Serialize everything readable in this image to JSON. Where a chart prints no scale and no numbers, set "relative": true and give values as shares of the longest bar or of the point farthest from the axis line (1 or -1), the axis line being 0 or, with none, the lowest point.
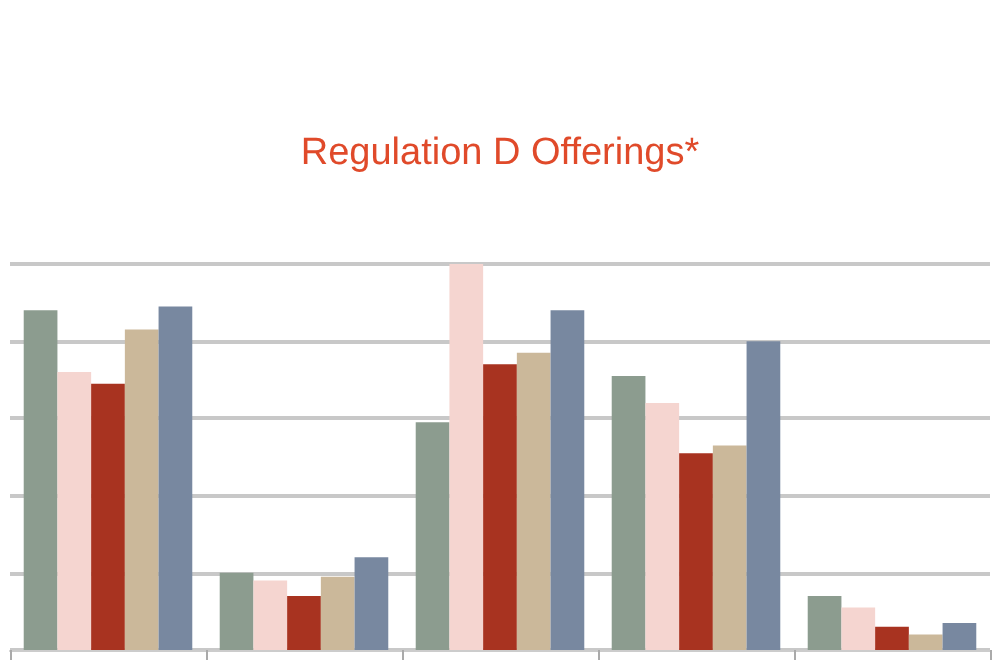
{
  "chart_data": {
    "type": "bar",
    "title": "Regulation D Offerings*",
    "relative": true,
    "grid": "y",
    "categories": [
      null,
      null,
      null,
      null,
      null
    ],
    "series": [
      {
        "color": "#8c9c8f",
        "values": [
          0.88,
          0.2,
          0.59,
          0.71,
          0.14
        ]
      },
      {
        "color": "#f5d5d0",
        "values": [
          0.72,
          0.18,
          1,
          0.64,
          0.11
        ]
      },
      {
        "color": "#a83320",
        "values": [
          0.69,
          0.14,
          0.74,
          0.51,
          0.06
        ]
      },
      {
        "color": "#cbb89a",
        "values": [
          0.83,
          0.19,
          0.77,
          0.53,
          0.04
        ]
      },
      {
        "color": "#7888a0",
        "values": [
          0.89,
          0.24,
          0.88,
          0.8,
          0.07
        ]
      }
    ]
  }
}
